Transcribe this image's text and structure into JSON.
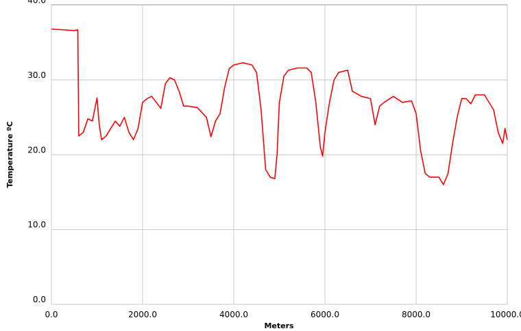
{
  "chart_data": {
    "type": "line",
    "xlabel": "Meters",
    "ylabel": "Temperature ºC",
    "x": [
      0,
      500,
      580,
      600,
      700,
      800,
      900,
      1000,
      1050,
      1100,
      1200,
      1300,
      1400,
      1500,
      1600,
      1700,
      1800,
      1900,
      2000,
      2100,
      2200,
      2300,
      2400,
      2500,
      2600,
      2700,
      2800,
      2900,
      3000,
      3200,
      3400,
      3500,
      3600,
      3700,
      3800,
      3900,
      4000,
      4200,
      4400,
      4500,
      4600,
      4700,
      4800,
      4900,
      4950,
      5000,
      5100,
      5200,
      5400,
      5600,
      5700,
      5800,
      5900,
      5950,
      6000,
      6100,
      6200,
      6300,
      6500,
      6600,
      6800,
      7000,
      7100,
      7200,
      7300,
      7500,
      7700,
      7900,
      8000,
      8100,
      8200,
      8300,
      8500,
      8600,
      8700,
      8800,
      8900,
      9000,
      9100,
      9200,
      9300,
      9500,
      9700,
      9800,
      9900,
      9950,
      10000
    ],
    "series": [
      {
        "name": "Temperature",
        "color": "#ff0000",
        "values": [
          36.8,
          36.6,
          36.7,
          22.5,
          23,
          24.8,
          24.5,
          27.6,
          24,
          22,
          22.5,
          23.5,
          24.5,
          23.8,
          25,
          23,
          22,
          23.5,
          27,
          27.5,
          27.8,
          27,
          26.2,
          29.5,
          30.3,
          30,
          28.5,
          26.5,
          26.5,
          26.3,
          25,
          22.4,
          24.5,
          25.5,
          29,
          31.5,
          32,
          32.3,
          32,
          31,
          26,
          18,
          17,
          16.8,
          20,
          27,
          30.5,
          31.3,
          31.6,
          31.6,
          31,
          27,
          21,
          19.8,
          23,
          27,
          30,
          31,
          31.3,
          28.5,
          27.8,
          27.5,
          24,
          26.5,
          27,
          27.8,
          27,
          27.2,
          25.5,
          20.5,
          17.5,
          17,
          17,
          16,
          17.5,
          21.5,
          25,
          27.5,
          27.5,
          26.8,
          28,
          28,
          26,
          23,
          21.5,
          23.5,
          22
        ]
      }
    ],
    "xlim": [
      0,
      10000
    ],
    "xticks": [
      {
        "value": 0,
        "label": "0.0"
      },
      {
        "value": 2000,
        "label": "2000.0"
      },
      {
        "value": 4000,
        "label": "4000.0"
      },
      {
        "value": 6000,
        "label": "6000.0"
      },
      {
        "value": 8000,
        "label": "8000.0"
      },
      {
        "value": 10000,
        "label": "10000.0"
      }
    ],
    "ylim": [
      0,
      40
    ],
    "yticks": [
      {
        "value": 0,
        "label": "0.0"
      },
      {
        "value": 10,
        "label": "10.0"
      },
      {
        "value": 20,
        "label": "20.0"
      },
      {
        "value": 30,
        "label": "30.0"
      },
      {
        "value": 40,
        "label": "40.0"
      }
    ],
    "grid": true
  }
}
